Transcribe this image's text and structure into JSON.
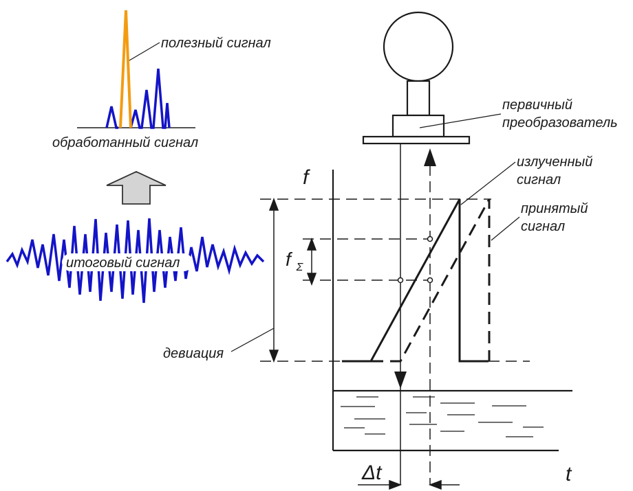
{
  "labels": {
    "useful_signal": "полезный сигнал",
    "processed_signal": "обработанный сигнал",
    "total_signal": "итоговый сигнал",
    "deviation": "девиация",
    "primary_converter_line1": "первичный",
    "primary_converter_line2": "преобразователь",
    "emitted_signal_line1": "излученный",
    "emitted_signal_line2": "сигнал",
    "received_signal_line1": "принятый",
    "received_signal_line2": "сигнал",
    "axis_f": "f",
    "f_sigma_base": "f",
    "f_sigma_sub": "Σ",
    "delta_t": "Δt",
    "axis_t": "t"
  },
  "colors": {
    "useful_peak": "#f39c12",
    "noise": "#1414c8",
    "lines": "#1a1a1a",
    "arrow_fill": "#d4d4d4"
  }
}
